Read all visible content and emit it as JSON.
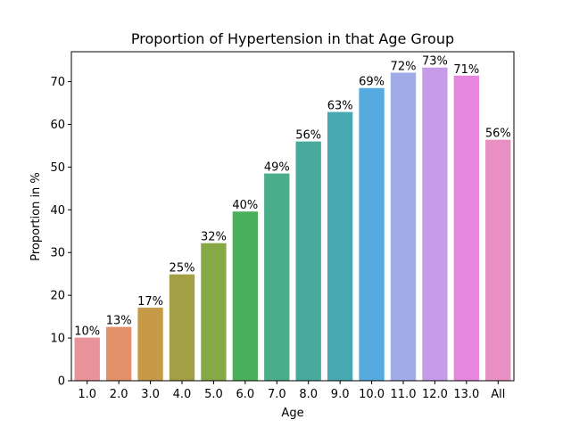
{
  "chart_data": {
    "type": "bar",
    "title": "Proportion of Hypertension in that Age Group",
    "xlabel": "Age",
    "ylabel": "Proportion in %",
    "categories": [
      "1.0",
      "2.0",
      "3.0",
      "4.0",
      "5.0",
      "6.0",
      "7.0",
      "8.0",
      "9.0",
      "10.0",
      "11.0",
      "12.0",
      "13.0",
      "All"
    ],
    "values": [
      10.1,
      12.6,
      17.1,
      24.9,
      32.2,
      39.6,
      48.5,
      56.0,
      62.9,
      68.5,
      72.1,
      73.3,
      71.4,
      56.4
    ],
    "data_labels": [
      "10%",
      "13%",
      "17%",
      "25%",
      "32%",
      "40%",
      "49%",
      "56%",
      "63%",
      "69%",
      "72%",
      "73%",
      "71%",
      "56%"
    ],
    "colors": [
      "#e8939a",
      "#e3916a",
      "#c79a48",
      "#a39f45",
      "#86a846",
      "#4aaf5a",
      "#4aae8c",
      "#47aa9c",
      "#49a9b2",
      "#55aadf",
      "#a0abe8",
      "#c69be7",
      "#e786df",
      "#e890c1"
    ],
    "ylim": [
      0,
      77
    ],
    "yticks": [
      0,
      10,
      20,
      30,
      40,
      50,
      60,
      70
    ],
    "grid": false
  }
}
